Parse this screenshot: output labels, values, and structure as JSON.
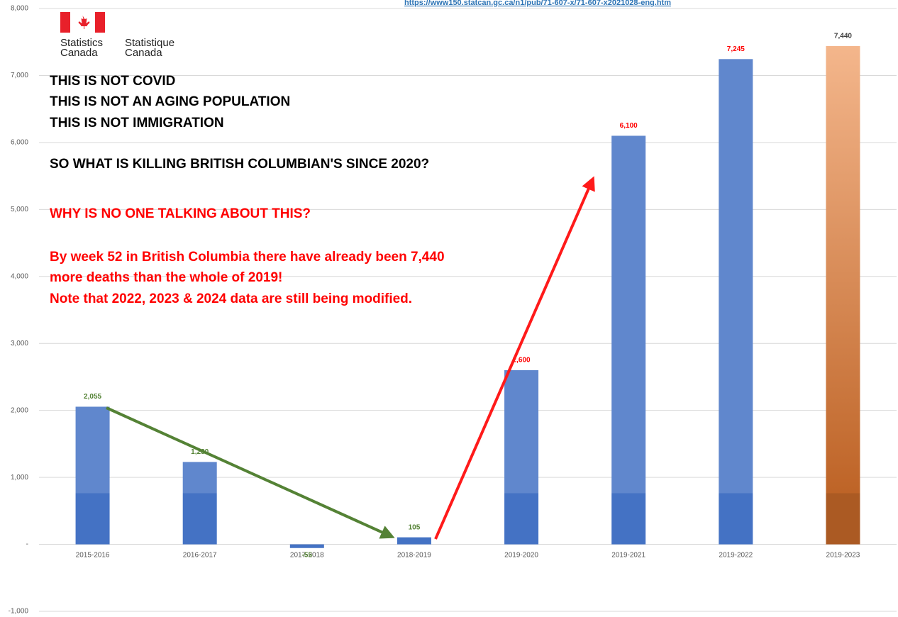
{
  "source": "https://www150.statcan.gc.ca/n1/pub/71-607-x/71-607-x2021028-eng.htm",
  "logo": {
    "en": [
      "Statistics",
      "Canada"
    ],
    "fr": [
      "Statistique",
      "Canada"
    ]
  },
  "chart_data": {
    "type": "bar",
    "categories": [
      "2015-2016",
      "2016-2017",
      "2017-2018",
      "2018-2019",
      "2019-2020",
      "2019-2021",
      "2019-2022",
      "2019-2023"
    ],
    "values": [
      2055,
      1230,
      -55,
      105,
      2600,
      6100,
      7245,
      7440
    ],
    "value_labels": [
      "2,055",
      "1,230",
      "-55",
      "105",
      "2,600",
      "6,100",
      "7,245",
      "7,440"
    ],
    "colors": [
      "#4472c4",
      "#4472c4",
      "#4472c4",
      "#4472c4",
      "#4472c4",
      "#4472c4",
      "#4472c4",
      "#ed7d31"
    ],
    "label_colors": [
      "#548235",
      "#548235",
      "#548235",
      "#548235",
      "#ff0000",
      "#ff0000",
      "#ff0000",
      "#404040"
    ],
    "ylim": [
      -1000,
      8000
    ],
    "yticks": [
      {
        "value": -1000,
        "label": "-1,000"
      },
      {
        "value": 0,
        "label": "-"
      },
      {
        "value": 1000,
        "label": "1,000"
      },
      {
        "value": 2000,
        "label": "2,000"
      },
      {
        "value": 3000,
        "label": "3,000"
      },
      {
        "value": 4000,
        "label": "4,000"
      },
      {
        "value": 5000,
        "label": "5,000"
      },
      {
        "value": 6000,
        "label": "6,000"
      },
      {
        "value": 7000,
        "label": "7,000"
      },
      {
        "value": 8000,
        "label": "8,000"
      }
    ],
    "grid": true,
    "annotations": [
      {
        "text": "THIS IS NOT COVID",
        "color": "#000000"
      },
      {
        "text": "THIS IS NOT AN AGING POPULATION",
        "color": "#000000"
      },
      {
        "text": "THIS IS NOT IMMIGRATION",
        "color": "#000000"
      },
      {
        "text": "SO WHAT IS KILLING BRITISH COLUMBIAN'S SINCE 2020?",
        "color": "#000000"
      },
      {
        "text": "WHY IS NO ONE TALKING ABOUT THIS?",
        "color": "#ff0000"
      },
      {
        "text": "By week 52 in British Columbia there have already been 7,440",
        "color": "#ff0000"
      },
      {
        "text": "more deaths than the whole of 2019!",
        "color": "#ff0000"
      },
      {
        "text": "Note that 2022, 2023 & 2024 data are still being modified.",
        "color": "#ff0000"
      }
    ]
  }
}
